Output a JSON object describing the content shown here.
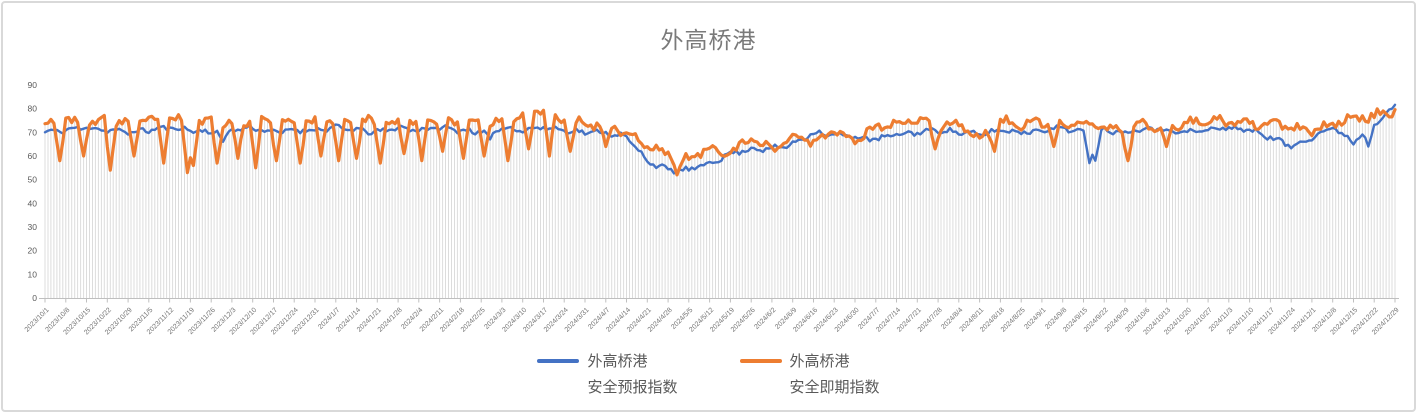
{
  "title": "外高桥港",
  "legend": {
    "items": [
      {
        "line1": "外高桥港",
        "line2": "安全预报指数",
        "color": "#4472C4"
      },
      {
        "line1": "外高桥港",
        "line2": "安全即期指数",
        "color": "#ED7D31"
      }
    ],
    "position": "bottom-center"
  },
  "colors": {
    "title_text": "#7a7a7a",
    "axis_label_text": "#737373",
    "axis_line": "#bfbfbf",
    "drop_line": "#dcdcdc",
    "frame_border": "#d9d9d9",
    "series_forecast": "#4472C4",
    "series_spot": "#ED7D31"
  },
  "chart_data": {
    "type": "line",
    "title": "外高桥港",
    "xlabel": "",
    "ylabel": "",
    "legend_position": "bottom",
    "gridlines": "no horizontal gridlines; one vertical gray drop line per daily data point",
    "x_axis": {
      "data_resolution": "daily",
      "num_points": 456,
      "first_date": "2023/10/1",
      "last_date": "2024/12/29",
      "tick_interval": "weekly",
      "tick_labels": [
        "2023/10/1",
        "2023/10/8",
        "2023/10/15",
        "2023/10/22",
        "2023/10/29",
        "2023/11/5",
        "2023/11/12",
        "2023/11/19",
        "2023/11/26",
        "2023/12/3",
        "2023/12/10",
        "2023/12/17",
        "2023/12/24",
        "2023/12/31",
        "2024/1/7",
        "2024/1/14",
        "2024/1/21",
        "2024/1/28",
        "2024/2/4",
        "2024/2/11",
        "2024/2/18",
        "2024/2/25",
        "2024/3/3",
        "2024/3/10",
        "2024/3/17",
        "2024/3/24",
        "2024/3/31",
        "2024/4/7",
        "2024/4/14",
        "2024/4/21",
        "2024/4/28",
        "2024/5/5",
        "2024/5/12",
        "2024/5/19",
        "2024/5/26",
        "2024/6/2",
        "2024/6/9",
        "2024/6/16",
        "2024/6/23",
        "2024/6/30",
        "2024/7/7",
        "2024/7/14",
        "2024/7/21",
        "2024/7/28",
        "2024/8/4",
        "2024/8/11",
        "2024/8/18",
        "2024/8/25",
        "2024/9/1",
        "2024/9/8",
        "2024/9/15",
        "2024/9/22",
        "2024/9/29",
        "2024/10/6",
        "2024/10/13",
        "2024/10/20",
        "2024/10/27",
        "2024/11/3",
        "2024/11/10",
        "2024/11/17",
        "2024/11/24",
        "2024/12/1",
        "2024/12/8",
        "2024/12/15",
        "2024/12/22",
        "2024/12/29"
      ]
    },
    "y_axis": {
      "min": 0,
      "max": 90,
      "tick_step": 10,
      "ticks": [
        0,
        10,
        20,
        30,
        40,
        50,
        60,
        70,
        80,
        90
      ]
    },
    "series": [
      {
        "name": "外高桥港安全预报指数",
        "color": "#4472C4",
        "weekly_values": [
          70,
          71,
          72,
          71,
          70,
          71,
          72,
          71,
          70,
          71,
          72,
          70,
          71,
          71,
          72,
          71,
          70,
          72,
          71,
          72,
          71,
          70,
          72,
          71,
          72,
          71,
          70,
          70,
          68,
          58,
          54,
          54,
          57,
          61,
          63,
          63,
          65,
          70,
          69,
          68,
          67,
          69,
          70,
          71,
          70,
          69,
          71,
          70,
          71,
          72,
          70,
          71,
          70,
          72,
          71,
          70,
          71,
          72,
          71,
          68,
          64,
          68,
          72,
          66,
          74,
          81
        ],
        "dip_events": [
          {
            "d": 60,
            "v": 66
          },
          {
            "d": 150,
            "v": 67
          },
          {
            "d": 352,
            "v": 57
          },
          {
            "d": 354,
            "v": 58
          },
          {
            "d": 446,
            "v": 64
          }
        ]
      },
      {
        "name": "外高桥港安全即期指数",
        "color": "#ED7D31",
        "weekly_values": [
          74,
          75,
          74,
          75,
          74,
          75,
          76,
          74,
          75,
          74,
          75,
          74,
          75,
          74,
          75,
          74,
          75,
          74,
          75,
          76,
          74,
          75,
          74,
          76,
          80,
          75,
          74,
          73,
          70,
          64,
          61,
          58,
          64,
          61,
          67,
          63,
          68,
          66,
          71,
          67,
          72,
          74,
          75,
          73,
          74,
          67,
          75,
          73,
          74,
          73,
          74,
          72,
          70,
          74,
          71,
          74,
          75,
          74,
          73,
          74,
          72,
          70,
          74,
          76,
          77,
          79
        ],
        "dip_events": [
          {
            "d": 5,
            "v": 58
          },
          {
            "d": 13,
            "v": 60
          },
          {
            "d": 22,
            "v": 54
          },
          {
            "d": 30,
            "v": 60
          },
          {
            "d": 40,
            "v": 57
          },
          {
            "d": 48,
            "v": 53
          },
          {
            "d": 50,
            "v": 56
          },
          {
            "d": 58,
            "v": 57
          },
          {
            "d": 65,
            "v": 59
          },
          {
            "d": 71,
            "v": 55
          },
          {
            "d": 78,
            "v": 58
          },
          {
            "d": 86,
            "v": 57
          },
          {
            "d": 93,
            "v": 60
          },
          {
            "d": 99,
            "v": 58
          },
          {
            "d": 105,
            "v": 59
          },
          {
            "d": 113,
            "v": 57
          },
          {
            "d": 121,
            "v": 61
          },
          {
            "d": 127,
            "v": 58
          },
          {
            "d": 134,
            "v": 62
          },
          {
            "d": 141,
            "v": 59
          },
          {
            "d": 148,
            "v": 60
          },
          {
            "d": 156,
            "v": 58
          },
          {
            "d": 163,
            "v": 63
          },
          {
            "d": 170,
            "v": 60
          },
          {
            "d": 177,
            "v": 62
          },
          {
            "d": 189,
            "v": 64
          },
          {
            "d": 213,
            "v": 52
          },
          {
            "d": 300,
            "v": 63
          },
          {
            "d": 320,
            "v": 62
          },
          {
            "d": 340,
            "v": 64
          },
          {
            "d": 365,
            "v": 58
          },
          {
            "d": 378,
            "v": 64
          }
        ]
      }
    ],
    "render_hints": {
      "noise_amplitude": [
        1.8,
        3.2
      ],
      "noise_seed": [
        11,
        23
      ],
      "sin_freq": [
        0.85,
        0.7
      ],
      "line_widths": [
        2.4,
        3.2
      ],
      "drop_line_color": "#dcdcdc"
    }
  }
}
